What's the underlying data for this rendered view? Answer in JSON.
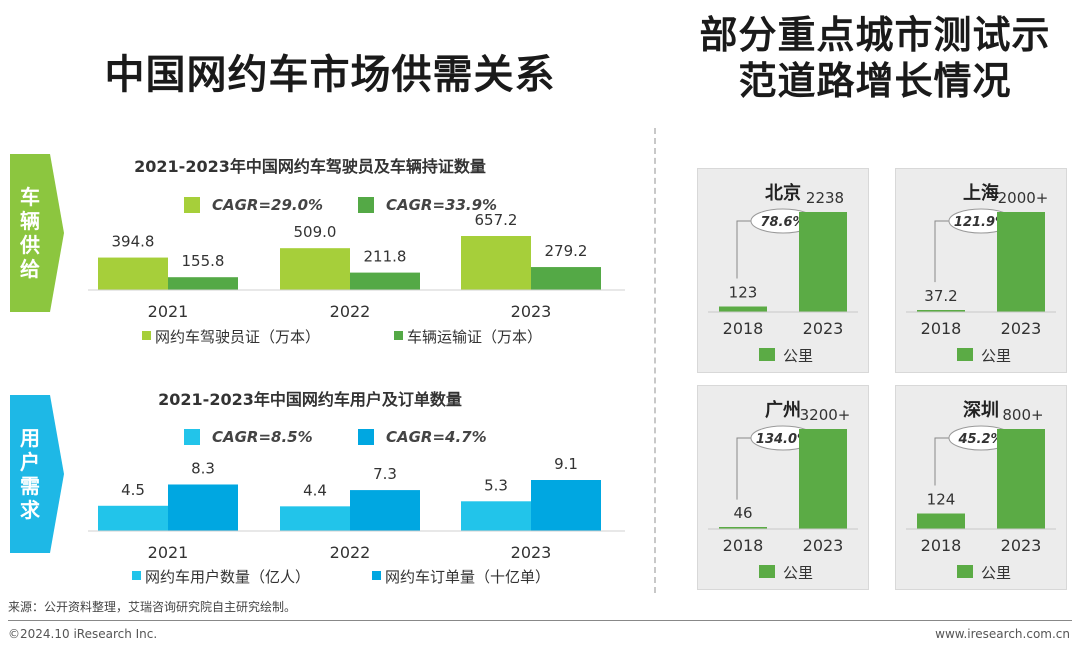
{
  "page_title": "中国网约车市场供需关系",
  "right_title_line1": "部分重点城市测试示",
  "right_title_line2": "范道路增长情况",
  "supply_tab": [
    "车",
    "辆",
    "供",
    "给"
  ],
  "demand_tab": [
    "用",
    "户",
    "需",
    "求"
  ],
  "source": "来源：公开资料整理，艾瑞咨询研究院自主研究绘制。",
  "copyright": "©2024.10 iResearch Inc.",
  "website": "www.iresearch.com.cn",
  "colors": {
    "supply_light": "#a6cf3a",
    "supply_dark": "#54a946",
    "demand_light": "#22c4ea",
    "demand_dark": "#00a7e1",
    "city_bar": "#5bab45",
    "tab_green": "#8cc63f",
    "tab_blue": "#1eb8e6"
  },
  "chart_data": [
    {
      "type": "bar",
      "title": "2021-2023年中国网约车驾驶员及车辆持证数量",
      "categories": [
        "2021",
        "2022",
        "2023"
      ],
      "series": [
        {
          "name": "网约车驾驶员证（万本）",
          "values": [
            394.8,
            509.0,
            657.2
          ],
          "labels": [
            "394.8",
            "509.0",
            "657.2"
          ],
          "cagr": "CAGR=29.0%"
        },
        {
          "name": "车辆运输证（万本）",
          "values": [
            155.8,
            211.8,
            279.2
          ],
          "labels": [
            "155.8",
            "211.8",
            "279.2"
          ],
          "cagr": "CAGR=33.9%"
        }
      ]
    },
    {
      "type": "bar",
      "title": "2021-2023年中国网约车用户及订单数量",
      "categories": [
        "2021",
        "2022",
        "2023"
      ],
      "series": [
        {
          "name": "网约车用户数量（亿人）",
          "values": [
            4.5,
            4.4,
            5.3
          ],
          "labels": [
            "4.5",
            "4.4",
            "5.3"
          ],
          "cagr": "CAGR=8.5%"
        },
        {
          "name": "网约车订单量（十亿单）",
          "values": [
            8.3,
            7.3,
            9.1
          ],
          "labels": [
            "8.3",
            "7.3",
            "9.1"
          ],
          "cagr": "CAGR=4.7%"
        }
      ]
    },
    {
      "type": "bar",
      "title": "北京",
      "categories": [
        "2018",
        "2023"
      ],
      "values": [
        123,
        2238
      ],
      "labels": [
        "123",
        "2238"
      ],
      "growth": "78.6%",
      "legend": "公里"
    },
    {
      "type": "bar",
      "title": "上海",
      "categories": [
        "2018",
        "2023"
      ],
      "values": [
        37.2,
        2000
      ],
      "labels": [
        "37.2",
        "2000+"
      ],
      "growth": "121.9%",
      "legend": "公里"
    },
    {
      "type": "bar",
      "title": "广州",
      "categories": [
        "2018",
        "2023"
      ],
      "values": [
        46,
        3200
      ],
      "labels": [
        "46",
        "3200+"
      ],
      "growth": "134.0%",
      "legend": "公里"
    },
    {
      "type": "bar",
      "title": "深圳",
      "categories": [
        "2018",
        "2023"
      ],
      "values": [
        124,
        800
      ],
      "labels": [
        "124",
        "800+"
      ],
      "growth": "45.2%",
      "legend": "公里"
    }
  ]
}
